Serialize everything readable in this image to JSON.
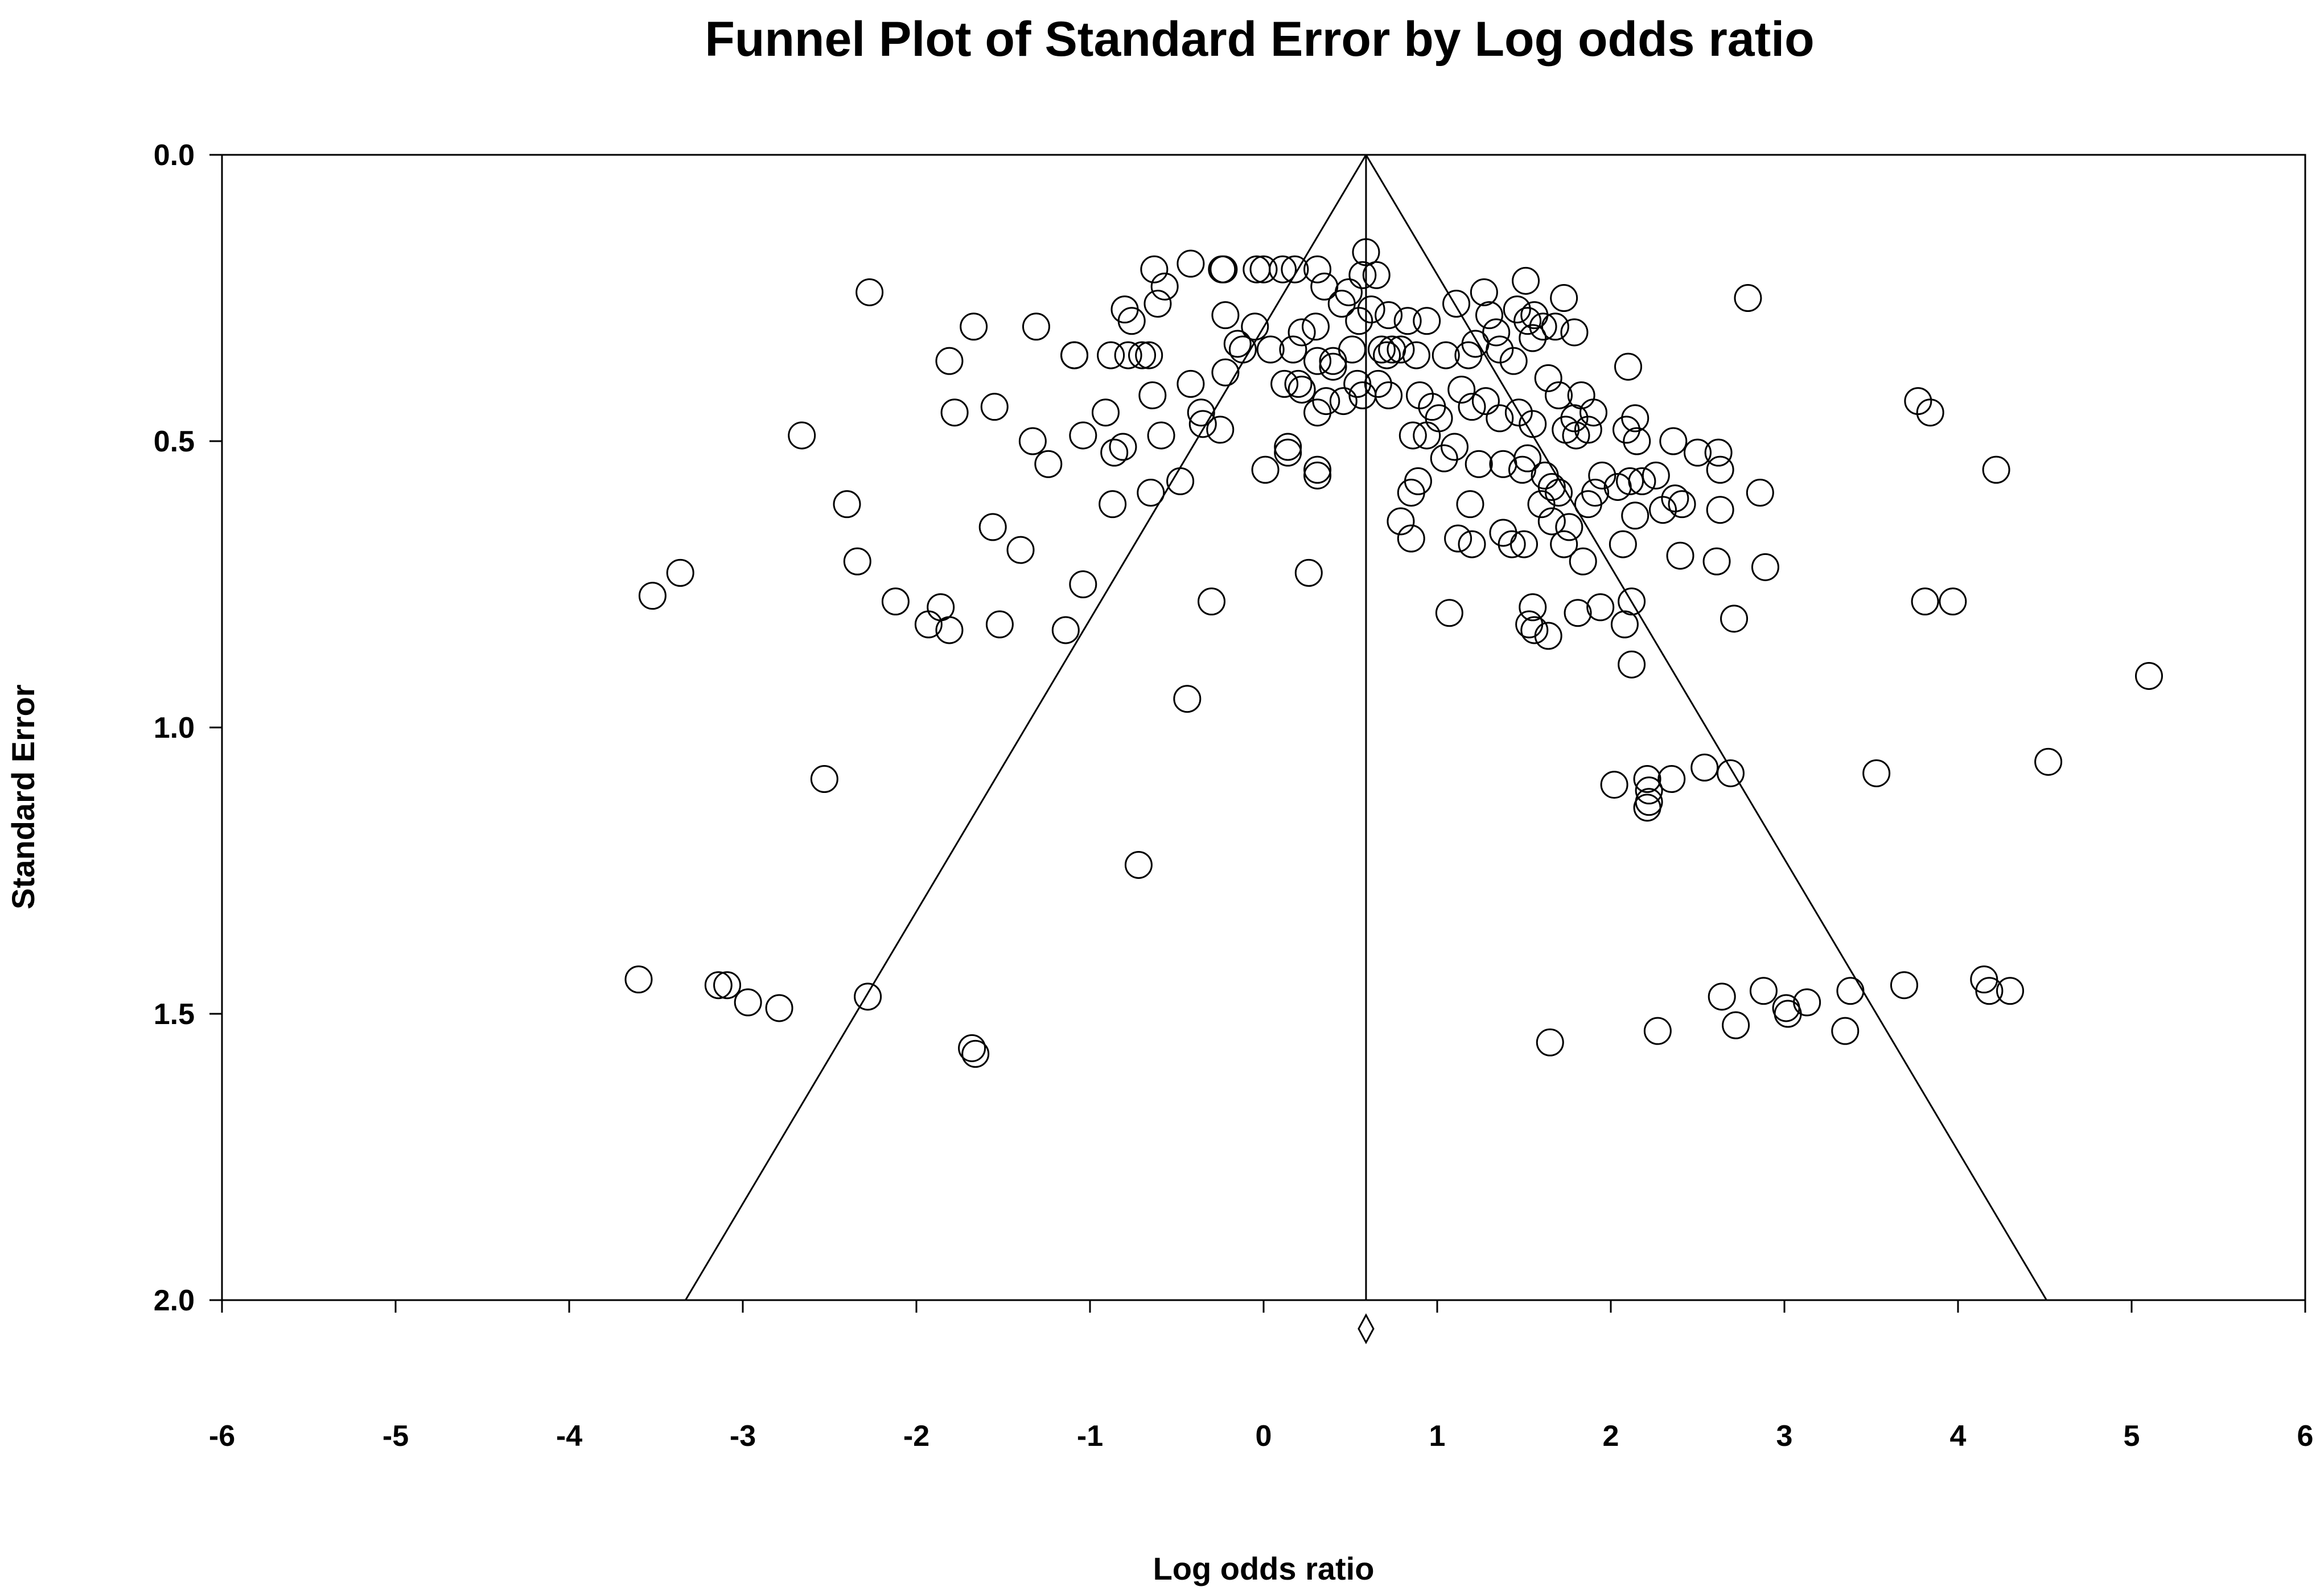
{
  "chart_data": {
    "type": "scatter",
    "title": "Funnel Plot of Standard Error by Log odds ratio",
    "xlabel": "Log odds ratio",
    "ylabel": "Standard Error",
    "xlim": [
      -6,
      6
    ],
    "ylim": [
      0,
      2
    ],
    "y_inverted": true,
    "x_ticks": [
      "-6",
      "-5",
      "-4",
      "-3",
      "-2",
      "-1",
      "0",
      "1",
      "2",
      "3",
      "4",
      "5",
      "6"
    ],
    "y_ticks": [
      "0.0",
      "0.5",
      "1.0",
      "1.5",
      "2.0"
    ],
    "grid": false,
    "legend": "none",
    "marker": "open-circle",
    "summary_effect": 0.59,
    "funnel_multiplier": 1.96,
    "funnel_apex": [
      0.59,
      0.0
    ],
    "funnel_base": [
      [
        -3.33,
        2.0
      ],
      [
        4.51,
        2.0
      ]
    ],
    "pooled_diamond": [
      0.59,
      2.05
    ],
    "points": [
      [
        -2.27,
        0.24
      ],
      [
        -0.42,
        0.19
      ],
      [
        -0.23,
        0.2
      ],
      [
        -0.24,
        0.2
      ],
      [
        -0.04,
        0.2
      ],
      [
        0.0,
        0.2
      ],
      [
        0.11,
        0.2
      ],
      [
        0.18,
        0.2
      ],
      [
        0.31,
        0.2
      ],
      [
        0.59,
        0.17
      ],
      [
        0.65,
        0.21
      ],
      [
        0.57,
        0.21
      ],
      [
        1.51,
        0.22
      ],
      [
        1.73,
        0.25
      ],
      [
        2.79,
        0.25
      ],
      [
        -0.63,
        0.2
      ],
      [
        -0.57,
        0.23
      ],
      [
        -0.61,
        0.26
      ],
      [
        -0.8,
        0.27
      ],
      [
        -0.76,
        0.29
      ],
      [
        -0.22,
        0.28
      ],
      [
        -0.05,
        0.3
      ],
      [
        0.35,
        0.23
      ],
      [
        0.49,
        0.24
      ],
      [
        0.45,
        0.26
      ],
      [
        0.62,
        0.27
      ],
      [
        0.55,
        0.29
      ],
      [
        0.22,
        0.31
      ],
      [
        0.3,
        0.3
      ],
      [
        -1.67,
        0.3
      ],
      [
        -1.31,
        0.3
      ],
      [
        1.11,
        0.26
      ],
      [
        1.27,
        0.24
      ],
      [
        1.46,
        0.27
      ],
      [
        1.56,
        0.28
      ],
      [
        1.52,
        0.29
      ],
      [
        1.61,
        0.3
      ],
      [
        1.68,
        0.3
      ],
      [
        1.3,
        0.28
      ],
      [
        0.94,
        0.29
      ],
      [
        0.83,
        0.29
      ],
      [
        0.72,
        0.28
      ],
      [
        -1.09,
        0.35
      ],
      [
        -1.09,
        0.35
      ],
      [
        -0.88,
        0.35
      ],
      [
        -0.78,
        0.35
      ],
      [
        -0.7,
        0.35
      ],
      [
        -0.66,
        0.35
      ],
      [
        -0.15,
        0.33
      ],
      [
        -0.12,
        0.34
      ],
      [
        0.04,
        0.34
      ],
      [
        0.17,
        0.34
      ],
      [
        0.31,
        0.36
      ],
      [
        0.4,
        0.36
      ],
      [
        0.51,
        0.34
      ],
      [
        0.68,
        0.34
      ],
      [
        0.71,
        0.35
      ],
      [
        0.74,
        0.34
      ],
      [
        0.79,
        0.34
      ],
      [
        0.88,
        0.35
      ],
      [
        1.05,
        0.35
      ],
      [
        1.18,
        0.35
      ],
      [
        1.22,
        0.33
      ],
      [
        1.36,
        0.34
      ],
      [
        1.44,
        0.36
      ],
      [
        1.34,
        0.31
      ],
      [
        1.55,
        0.32
      ],
      [
        1.79,
        0.31
      ],
      [
        2.1,
        0.37
      ],
      [
        -1.81,
        0.36
      ],
      [
        -0.22,
        0.38
      ],
      [
        0.4,
        0.37
      ],
      [
        -0.42,
        0.4
      ],
      [
        -0.64,
        0.42
      ],
      [
        -0.36,
        0.45
      ],
      [
        -0.35,
        0.47
      ],
      [
        -0.91,
        0.45
      ],
      [
        -1.78,
        0.45
      ],
      [
        -1.55,
        0.44
      ],
      [
        0.12,
        0.4
      ],
      [
        0.2,
        0.4
      ],
      [
        0.22,
        0.41
      ],
      [
        0.36,
        0.43
      ],
      [
        0.31,
        0.45
      ],
      [
        0.46,
        0.43
      ],
      [
        0.54,
        0.4
      ],
      [
        0.57,
        0.42
      ],
      [
        0.66,
        0.4
      ],
      [
        0.72,
        0.42
      ],
      [
        0.9,
        0.42
      ],
      [
        0.97,
        0.44
      ],
      [
        1.01,
        0.46
      ],
      [
        1.14,
        0.41
      ],
      [
        1.2,
        0.44
      ],
      [
        1.28,
        0.43
      ],
      [
        1.36,
        0.46
      ],
      [
        1.47,
        0.45
      ],
      [
        1.55,
        0.47
      ],
      [
        1.64,
        0.39
      ],
      [
        1.7,
        0.42
      ],
      [
        1.74,
        0.48
      ],
      [
        1.79,
        0.46
      ],
      [
        1.83,
        0.42
      ],
      [
        1.9,
        0.45
      ],
      [
        2.14,
        0.46
      ],
      [
        -1.04,
        0.49
      ],
      [
        -1.33,
        0.5
      ],
      [
        -2.66,
        0.49
      ],
      [
        -0.86,
        0.52
      ],
      [
        -0.81,
        0.51
      ],
      [
        -0.59,
        0.49
      ],
      [
        -0.25,
        0.48
      ],
      [
        0.14,
        0.51
      ],
      [
        0.14,
        0.52
      ],
      [
        0.01,
        0.55
      ],
      [
        0.31,
        0.55
      ],
      [
        0.31,
        0.56
      ],
      [
        0.86,
        0.49
      ],
      [
        0.94,
        0.49
      ],
      [
        1.04,
        0.53
      ],
      [
        1.1,
        0.51
      ],
      [
        1.24,
        0.54
      ],
      [
        1.38,
        0.54
      ],
      [
        1.49,
        0.55
      ],
      [
        1.52,
        0.53
      ],
      [
        1.62,
        0.56
      ],
      [
        1.66,
        0.58
      ],
      [
        1.8,
        0.49
      ],
      [
        1.87,
        0.48
      ],
      [
        2.09,
        0.48
      ],
      [
        2.15,
        0.5
      ],
      [
        2.36,
        0.5
      ],
      [
        2.5,
        0.52
      ],
      [
        2.62,
        0.52
      ],
      [
        2.63,
        0.55
      ],
      [
        -1.24,
        0.54
      ],
      [
        -0.48,
        0.57
      ],
      [
        -0.65,
        0.59
      ],
      [
        -2.4,
        0.61
      ],
      [
        -0.87,
        0.61
      ],
      [
        -1.56,
        0.65
      ],
      [
        -1.4,
        0.69
      ],
      [
        -2.34,
        0.71
      ],
      [
        -1.04,
        0.75
      ],
      [
        -2.12,
        0.78
      ],
      [
        -1.86,
        0.79
      ],
      [
        -1.93,
        0.82
      ],
      [
        -1.81,
        0.83
      ],
      [
        -1.52,
        0.82
      ],
      [
        -1.14,
        0.83
      ],
      [
        -0.3,
        0.78
      ],
      [
        0.26,
        0.73
      ],
      [
        -0.44,
        0.95
      ],
      [
        -3.52,
        0.77
      ],
      [
        -3.36,
        0.73
      ],
      [
        0.85,
        0.59
      ],
      [
        0.89,
        0.57
      ],
      [
        0.79,
        0.64
      ],
      [
        0.85,
        0.67
      ],
      [
        1.12,
        0.67
      ],
      [
        1.2,
        0.68
      ],
      [
        1.19,
        0.61
      ],
      [
        1.38,
        0.66
      ],
      [
        1.43,
        0.68
      ],
      [
        1.5,
        0.68
      ],
      [
        1.6,
        0.61
      ],
      [
        1.66,
        0.64
      ],
      [
        1.7,
        0.59
      ],
      [
        1.73,
        0.68
      ],
      [
        1.76,
        0.65
      ],
      [
        1.84,
        0.71
      ],
      [
        1.87,
        0.61
      ],
      [
        1.91,
        0.59
      ],
      [
        1.95,
        0.56
      ],
      [
        2.04,
        0.58
      ],
      [
        2.11,
        0.57
      ],
      [
        2.14,
        0.63
      ],
      [
        2.18,
        0.57
      ],
      [
        2.26,
        0.56
      ],
      [
        2.3,
        0.62
      ],
      [
        2.37,
        0.6
      ],
      [
        2.41,
        0.61
      ],
      [
        2.63,
        0.62
      ],
      [
        2.86,
        0.59
      ],
      [
        2.07,
        0.68
      ],
      [
        2.4,
        0.7
      ],
      [
        2.61,
        0.71
      ],
      [
        2.89,
        0.72
      ],
      [
        1.07,
        0.8
      ],
      [
        1.55,
        0.79
      ],
      [
        1.53,
        0.82
      ],
      [
        1.56,
        0.83
      ],
      [
        1.64,
        0.84
      ],
      [
        1.81,
        0.8
      ],
      [
        1.94,
        0.79
      ],
      [
        2.08,
        0.82
      ],
      [
        2.12,
        0.78
      ],
      [
        2.71,
        0.81
      ],
      [
        2.12,
        0.89
      ],
      [
        3.77,
        0.43
      ],
      [
        3.84,
        0.45
      ],
      [
        4.22,
        0.55
      ],
      [
        3.81,
        0.78
      ],
      [
        3.97,
        0.78
      ],
      [
        5.1,
        0.91
      ],
      [
        -2.53,
        1.09
      ],
      [
        2.02,
        1.1
      ],
      [
        2.21,
        1.09
      ],
      [
        2.22,
        1.11
      ],
      [
        2.21,
        1.14
      ],
      [
        2.22,
        1.13
      ],
      [
        2.35,
        1.09
      ],
      [
        2.54,
        1.07
      ],
      [
        2.69,
        1.08
      ],
      [
        3.53,
        1.08
      ],
      [
        4.52,
        1.06
      ],
      [
        -0.72,
        1.24
      ],
      [
        -3.6,
        1.44
      ],
      [
        -3.14,
        1.45
      ],
      [
        -3.09,
        1.45
      ],
      [
        -2.97,
        1.48
      ],
      [
        -2.79,
        1.49
      ],
      [
        -2.28,
        1.47
      ],
      [
        -1.68,
        1.56
      ],
      [
        -1.66,
        1.57
      ],
      [
        1.65,
        1.55
      ],
      [
        2.27,
        1.53
      ],
      [
        2.64,
        1.47
      ],
      [
        2.72,
        1.52
      ],
      [
        2.88,
        1.46
      ],
      [
        3.01,
        1.49
      ],
      [
        3.02,
        1.5
      ],
      [
        3.13,
        1.48
      ],
      [
        3.35,
        1.53
      ],
      [
        3.38,
        1.46
      ],
      [
        3.69,
        1.45
      ],
      [
        4.15,
        1.44
      ],
      [
        4.18,
        1.46
      ],
      [
        4.3,
        1.46
      ]
    ]
  }
}
